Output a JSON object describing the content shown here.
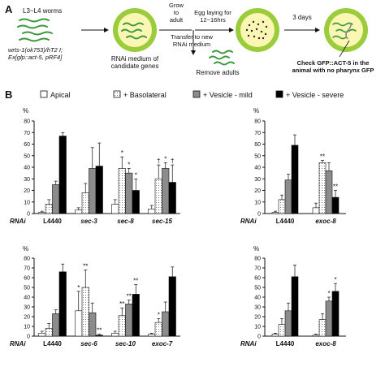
{
  "panel_a": {
    "label": "A",
    "worms_caption": "L3~L4 worms",
    "genotype_line1": "wrts-1(ok753)/hT2 I;",
    "genotype_line2": "Ex[glp::act-5, pRF4]",
    "plate1_caption_line1": "RNAi medium of",
    "plate1_caption_line2": "candidate genes",
    "step_grow_line1": "Grow",
    "step_grow_line2": "to",
    "step_grow_line3": "adult",
    "step_egg_line1": "Egg laying for",
    "step_egg_line2": "12~16hrs",
    "step_transfer_line1": "Transfer to new",
    "step_transfer_line2": "RNAi medium",
    "step_remove": "Remove adults",
    "step_days": "3 days",
    "check_line1": "Check GFP::ACT-5 in the",
    "check_line2": "animal with no pharynx GFP",
    "colors": {
      "plate_rim": "#9acc3c",
      "plate_fill": "#fbf6b4",
      "worm": "#3c9a3c",
      "egg": "#2a2a2a"
    }
  },
  "panel_b": {
    "label": "B",
    "legend": [
      {
        "label": "Apical",
        "fill": "#ffffff"
      },
      {
        "label": "+ Basolateral",
        "fill": "hatch"
      },
      {
        "label": "+ Vesicle - mild",
        "fill": "#8c8c8c"
      },
      {
        "label": "+ Vesicle - severe",
        "fill": "#000000"
      }
    ],
    "percent_label": "%",
    "rnai_label": "RNAi"
  },
  "chart_data": [
    {
      "type": "bar",
      "categories": [
        "L4440",
        "sec-3",
        "sec-8",
        "sec-15"
      ],
      "ylim": [
        0,
        80
      ],
      "yticks": [
        0,
        10,
        20,
        30,
        40,
        50,
        60,
        70,
        80
      ],
      "ylabel": "%",
      "xlabel": "RNAi",
      "series": [
        {
          "name": "Apical",
          "values": [
            1,
            3,
            8,
            4
          ],
          "errors": [
            1,
            2,
            4,
            3
          ]
        },
        {
          "name": "+ Basolateral",
          "values": [
            8,
            18,
            39,
            30
          ],
          "errors": [
            4,
            8,
            10,
            12
          ]
        },
        {
          "name": "+ Vesicle - mild",
          "values": [
            25,
            39,
            35,
            39
          ],
          "errors": [
            3,
            18,
            4,
            5
          ]
        },
        {
          "name": "+ Vesicle - severe",
          "values": [
            67,
            41,
            20,
            27
          ],
          "errors": [
            3,
            20,
            10,
            15
          ]
        }
      ],
      "annotations": [
        {
          "category": "sec-8",
          "series": "+ Basolateral",
          "text": "*"
        },
        {
          "category": "sec-8",
          "series": "+ Vesicle - mild",
          "text": "*"
        },
        {
          "category": "sec-8",
          "series": "+ Vesicle - severe",
          "text": "*"
        },
        {
          "category": "sec-15",
          "series": "+ Basolateral",
          "text": "†"
        },
        {
          "category": "sec-15",
          "series": "+ Vesicle - mild",
          "text": "*"
        },
        {
          "category": "sec-15",
          "series": "+ Vesicle - severe",
          "text": "†"
        }
      ]
    },
    {
      "type": "bar",
      "categories": [
        "L4440",
        "exoc-8"
      ],
      "ylim": [
        0,
        80
      ],
      "yticks": [
        0,
        10,
        20,
        30,
        40,
        50,
        60,
        70,
        80
      ],
      "ylabel": "%",
      "xlabel": "RNAi",
      "series": [
        {
          "name": "Apical",
          "values": [
            1,
            5
          ],
          "errors": [
            1,
            4
          ]
        },
        {
          "name": "+ Basolateral",
          "values": [
            12,
            44
          ],
          "errors": [
            4,
            2
          ]
        },
        {
          "name": "+ Vesicle - mild",
          "values": [
            29,
            37
          ],
          "errors": [
            5,
            7
          ]
        },
        {
          "name": "+ Vesicle - severe",
          "values": [
            59,
            14
          ],
          "errors": [
            9,
            6
          ]
        }
      ],
      "annotations": [
        {
          "category": "exoc-8",
          "series": "+ Basolateral",
          "text": "**"
        },
        {
          "category": "exoc-8",
          "series": "+ Vesicle - severe",
          "text": "**"
        }
      ]
    },
    {
      "type": "bar",
      "categories": [
        "L4440",
        "sec-6",
        "sec-10",
        "exoc-7"
      ],
      "ylim": [
        0,
        80
      ],
      "yticks": [
        0,
        10,
        20,
        30,
        40,
        50,
        60,
        70,
        80
      ],
      "ylabel": "%",
      "xlabel": "RNAi",
      "series": [
        {
          "name": "Apical",
          "values": [
            3,
            26,
            3,
            2
          ],
          "errors": [
            2,
            20,
            2,
            1
          ]
        },
        {
          "name": "+ Basolateral",
          "values": [
            8,
            50,
            21,
            14
          ],
          "errors": [
            5,
            18,
            8,
            4
          ]
        },
        {
          "name": "+ Vesicle - mild",
          "values": [
            23,
            24,
            33,
            25
          ],
          "errors": [
            4,
            10,
            4,
            10
          ]
        },
        {
          "name": "+ Vesicle - severe",
          "values": [
            66,
            1,
            43,
            61
          ],
          "errors": [
            8,
            1,
            10,
            10
          ]
        }
      ],
      "annotations": [
        {
          "category": "sec-6",
          "series": "Apical",
          "text": "*"
        },
        {
          "category": "sec-6",
          "series": "+ Basolateral",
          "text": "**"
        },
        {
          "category": "sec-6",
          "series": "+ Vesicle - severe",
          "text": "**"
        },
        {
          "category": "sec-10",
          "series": "+ Basolateral",
          "text": "**"
        },
        {
          "category": "sec-10",
          "series": "+ Vesicle - mild",
          "text": "**"
        },
        {
          "category": "sec-10",
          "series": "+ Vesicle - severe",
          "text": "**"
        },
        {
          "category": "exoc-7",
          "series": "+ Basolateral",
          "text": "*"
        }
      ]
    },
    {
      "type": "bar",
      "categories": [
        "L4440",
        "exoc-8"
      ],
      "ylim": [
        0,
        80
      ],
      "yticks": [
        0,
        10,
        20,
        30,
        40,
        50,
        60,
        70,
        80
      ],
      "ylabel": "%",
      "xlabel": "RNAi",
      "series": [
        {
          "name": "Apical",
          "values": [
            2,
            1
          ],
          "errors": [
            1,
            1
          ]
        },
        {
          "name": "+ Basolateral",
          "values": [
            12,
            17
          ],
          "errors": [
            6,
            6
          ]
        },
        {
          "name": "+ Vesicle - mild",
          "values": [
            26,
            36
          ],
          "errors": [
            8,
            4
          ]
        },
        {
          "name": "+ Vesicle - severe",
          "values": [
            61,
            46
          ],
          "errors": [
            12,
            8
          ]
        }
      ],
      "annotations": [
        {
          "category": "exoc-8",
          "series": "+ Vesicle - mild",
          "text": "*"
        },
        {
          "category": "exoc-8",
          "series": "+ Vesicle - severe",
          "text": "*"
        }
      ]
    }
  ]
}
